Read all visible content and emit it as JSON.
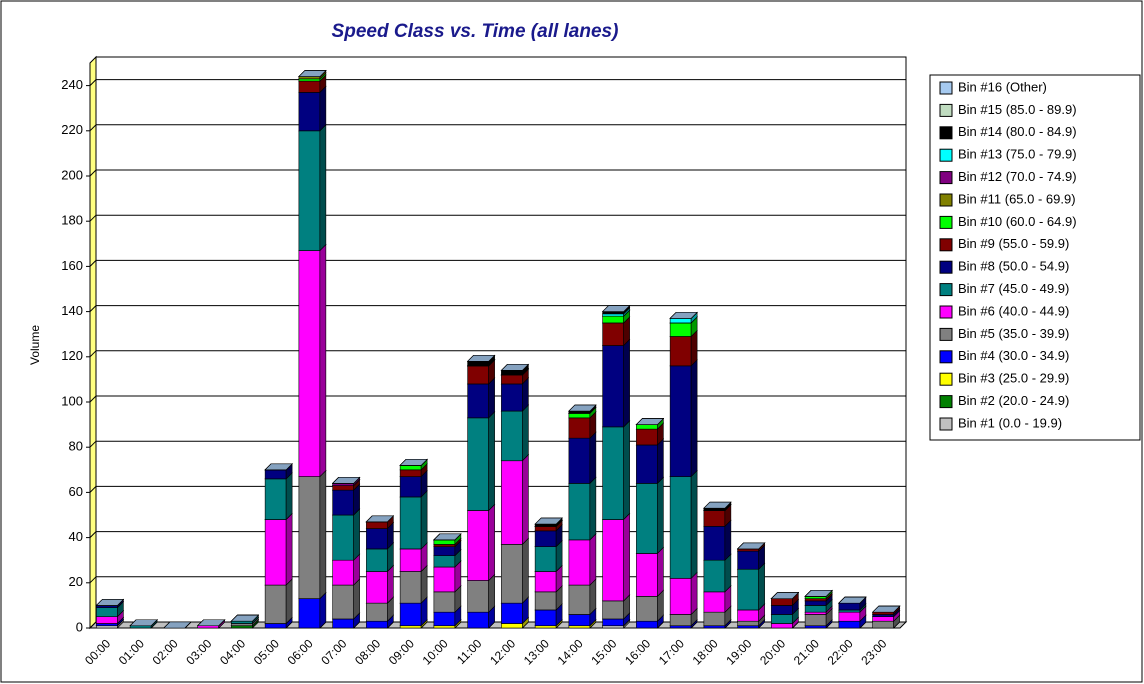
{
  "chart_data": {
    "type": "bar3d_stacked",
    "title": "Speed Class vs. Time (all lanes)",
    "ylabel": "Volume",
    "categories": [
      "00:00",
      "01:00",
      "02:00",
      "03:00",
      "04:00",
      "05:00",
      "06:00",
      "07:00",
      "08:00",
      "09:00",
      "10:00",
      "11:00",
      "12:00",
      "13:00",
      "14:00",
      "15:00",
      "16:00",
      "17:00",
      "18:00",
      "19:00",
      "20:00",
      "21:00",
      "22:00",
      "23:00"
    ],
    "ylim": [
      0,
      250
    ],
    "yticks": [
      0,
      20,
      40,
      60,
      80,
      100,
      120,
      140,
      160,
      180,
      200,
      220,
      240
    ],
    "grid": true,
    "legend": "right",
    "series": [
      {
        "name": "Bin #1 (0.0 - 19.9)",
        "color": "#c0c0c0",
        "values": [
          1,
          0,
          0,
          0,
          0,
          0,
          0,
          0,
          0,
          0,
          0,
          0,
          0,
          0,
          0,
          1,
          0,
          0,
          0,
          0,
          0,
          0,
          0,
          0
        ]
      },
      {
        "name": "Bin #2 (20.0 - 24.9)",
        "color": "#008000",
        "values": [
          0,
          0,
          0,
          0,
          1,
          0,
          0,
          0,
          0,
          0,
          0,
          0,
          0,
          0,
          0,
          0,
          0,
          0,
          0,
          0,
          0,
          0,
          0,
          0
        ]
      },
      {
        "name": "Bin #3 (25.0 - 29.9)",
        "color": "#ffff00",
        "values": [
          0,
          0,
          0,
          0,
          0,
          0,
          0,
          0,
          0,
          1,
          1,
          0,
          2,
          1,
          1,
          0,
          0,
          0,
          0,
          0,
          0,
          0,
          0,
          0
        ]
      },
      {
        "name": "Bin #4 (30.0 - 34.9)",
        "color": "#0000ff",
        "values": [
          1,
          0,
          0,
          0,
          0,
          2,
          13,
          4,
          3,
          10,
          6,
          7,
          9,
          7,
          5,
          3,
          3,
          1,
          1,
          1,
          0,
          1,
          3,
          0
        ]
      },
      {
        "name": "Bin #5 (35.0 - 39.9)",
        "color": "#808080",
        "values": [
          0,
          0,
          0,
          0,
          1,
          17,
          54,
          15,
          8,
          14,
          9,
          14,
          26,
          8,
          13,
          8,
          11,
          5,
          6,
          2,
          0,
          5,
          0,
          3
        ]
      },
      {
        "name": "Bin #6 (40.0 - 44.9)",
        "color": "#ff00ff",
        "values": [
          3,
          0,
          0,
          1,
          0,
          29,
          100,
          11,
          14,
          10,
          11,
          31,
          37,
          9,
          20,
          36,
          19,
          16,
          9,
          5,
          2,
          1,
          4,
          2
        ]
      },
      {
        "name": "Bin #7 (45.0 - 49.9)",
        "color": "#008080",
        "values": [
          4,
          1,
          0,
          0,
          1,
          18,
          53,
          20,
          10,
          23,
          5,
          41,
          22,
          11,
          25,
          41,
          31,
          45,
          14,
          18,
          4,
          3,
          1,
          0
        ]
      },
      {
        "name": "Bin #8 (50.0 - 54.9)",
        "color": "#000080",
        "values": [
          1,
          0,
          0,
          0,
          0,
          4,
          17,
          11,
          9,
          9,
          4,
          15,
          12,
          7,
          20,
          36,
          17,
          49,
          15,
          8,
          4,
          2,
          3,
          1
        ]
      },
      {
        "name": "Bin #9 (55.0 - 59.9)",
        "color": "#800000",
        "values": [
          0,
          0,
          0,
          0,
          0,
          0,
          5,
          2,
          3,
          3,
          1,
          8,
          4,
          2,
          9,
          10,
          7,
          13,
          7,
          1,
          3,
          1,
          0,
          1
        ]
      },
      {
        "name": "Bin #10 (60.0 - 64.9)",
        "color": "#00ff00",
        "values": [
          0,
          0,
          0,
          0,
          0,
          0,
          1,
          0,
          0,
          2,
          2,
          0,
          0,
          0,
          2,
          3,
          2,
          6,
          0,
          0,
          0,
          1,
          0,
          0
        ]
      },
      {
        "name": "Bin #11 (65.0 - 69.9)",
        "color": "#808000",
        "values": [
          0,
          0,
          0,
          0,
          0,
          0,
          1,
          0,
          0,
          0,
          0,
          0,
          0,
          0,
          0,
          0,
          0,
          0,
          0,
          0,
          0,
          0,
          0,
          0
        ]
      },
      {
        "name": "Bin #12 (70.0 - 74.9)",
        "color": "#800080",
        "values": [
          0,
          0,
          0,
          0,
          0,
          0,
          0,
          1,
          0,
          0,
          0,
          0,
          0,
          0,
          0,
          0,
          0,
          0,
          0,
          0,
          0,
          0,
          0,
          0
        ]
      },
      {
        "name": "Bin #13 (75.0 - 79.9)",
        "color": "#00ffff",
        "values": [
          0,
          0,
          0,
          0,
          0,
          0,
          0,
          0,
          0,
          0,
          0,
          0,
          0,
          0,
          0,
          1,
          0,
          2,
          0,
          0,
          0,
          0,
          0,
          0
        ]
      },
      {
        "name": "Bin #14 (80.0 - 84.9)",
        "color": "#000000",
        "values": [
          0,
          0,
          0,
          0,
          0,
          0,
          0,
          0,
          0,
          0,
          0,
          2,
          2,
          1,
          1,
          1,
          0,
          0,
          1,
          0,
          0,
          0,
          0,
          0
        ]
      },
      {
        "name": "Bin #15 (85.0 - 89.9)",
        "color": "#c0dcc0",
        "values": [
          0,
          0,
          0,
          0,
          0,
          0,
          0,
          0,
          0,
          0,
          0,
          0,
          0,
          0,
          0,
          0,
          0,
          0,
          0,
          0,
          0,
          0,
          0,
          0
        ]
      },
      {
        "name": "Bin #16 (Other)",
        "color": "#a6caf0",
        "values": [
          0,
          0,
          0,
          0,
          0,
          0,
          0,
          0,
          0,
          0,
          0,
          0,
          0,
          0,
          0,
          0,
          0,
          0,
          0,
          0,
          0,
          0,
          0,
          0
        ]
      }
    ]
  }
}
